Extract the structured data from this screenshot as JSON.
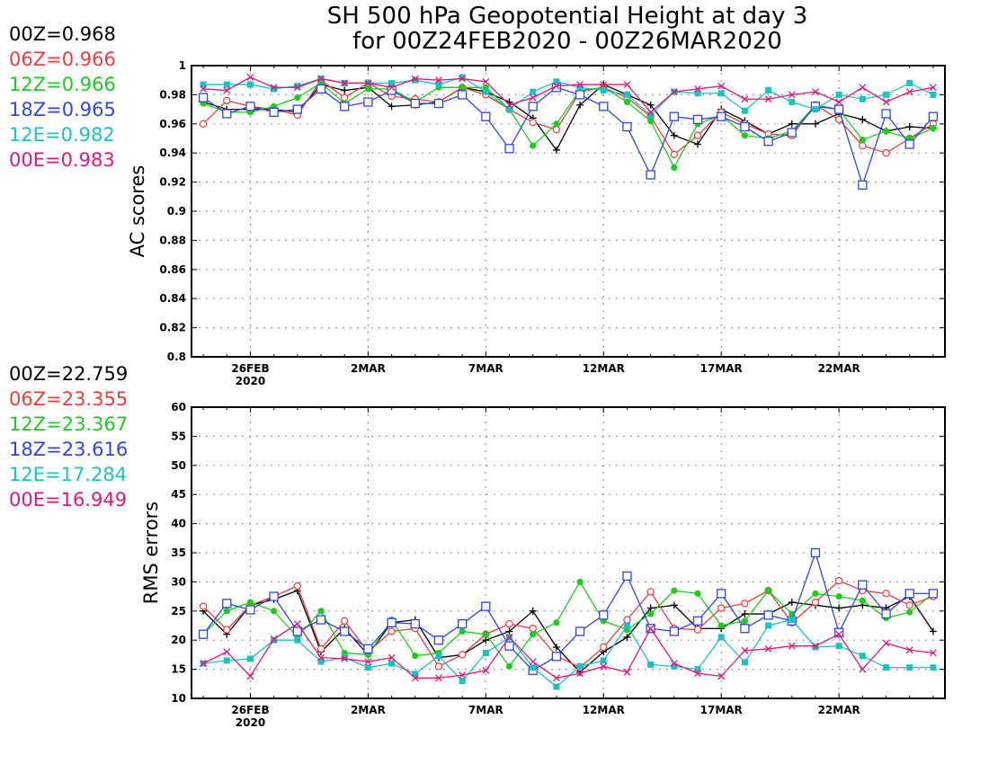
{
  "title": {
    "line1": "SH 500 hPa Geopotential Height at day 3",
    "line2": "for 00Z24FEB2020 - 00Z26MAR2020"
  },
  "colors": {
    "00Z": "#000000",
    "06Z": "#ef3b3b",
    "12Z": "#1bce1b",
    "18Z": "#2f45e6",
    "12E": "#19c3c3",
    "00E": "#e0167c"
  },
  "legend_ac": [
    {
      "key": "00Z",
      "text": "00Z=0.968"
    },
    {
      "key": "06Z",
      "text": "06Z=0.966"
    },
    {
      "key": "12Z",
      "text": "12Z=0.966"
    },
    {
      "key": "18Z",
      "text": "18Z=0.965"
    },
    {
      "key": "12E",
      "text": "12E=0.982"
    },
    {
      "key": "00E",
      "text": "00E=0.983"
    }
  ],
  "legend_rms": [
    {
      "key": "00Z",
      "text": "00Z=22.759"
    },
    {
      "key": "06Z",
      "text": "06Z=23.355"
    },
    {
      "key": "12Z",
      "text": "12Z=23.367"
    },
    {
      "key": "18Z",
      "text": "18Z=23.616"
    },
    {
      "key": "12E",
      "text": "12E=17.284"
    },
    {
      "key": "00E",
      "text": "00E=16.949"
    }
  ],
  "chart_data": [
    {
      "type": "line",
      "ylabel": "AC scores",
      "ylim": [
        0.8,
        1.0
      ],
      "yticks": [
        "0.8",
        "0.82",
        "0.84",
        "0.86",
        "0.88",
        "0.9",
        "0.92",
        "0.94",
        "0.96",
        "0.98",
        "1"
      ],
      "xticks": [
        {
          "day": 26,
          "label": "26FEB",
          "sub": "2020"
        },
        {
          "day": 31,
          "label": "2MAR",
          "sub": ""
        },
        {
          "day": 36,
          "label": "7MAR",
          "sub": ""
        },
        {
          "day": 41,
          "label": "12MAR",
          "sub": ""
        },
        {
          "day": 46,
          "label": "17MAR",
          "sub": ""
        },
        {
          "day": 51,
          "label": "22MAR",
          "sub": ""
        }
      ],
      "x": [
        24,
        25,
        26,
        27,
        28,
        29,
        30,
        31,
        32,
        33,
        34,
        35,
        36,
        37,
        38,
        39,
        40,
        41,
        42,
        43,
        44,
        45,
        46,
        47,
        48,
        49,
        50,
        51,
        52,
        53,
        54,
        55
      ],
      "grid": true,
      "series": [
        {
          "name": "00Z",
          "marker": "plus",
          "values": [
            0.975,
            0.97,
            0.97,
            0.97,
            0.968,
            0.987,
            0.983,
            0.985,
            0.972,
            0.973,
            0.975,
            0.985,
            0.982,
            0.975,
            0.964,
            0.942,
            0.973,
            0.987,
            0.98,
            0.973,
            0.952,
            0.946,
            0.97,
            0.962,
            0.953,
            0.96,
            0.96,
            0.967,
            0.963,
            0.955,
            0.958,
            0.957
          ]
        },
        {
          "name": "06Z",
          "marker": "circle",
          "values": [
            0.96,
            0.976,
            0.972,
            0.97,
            0.966,
            0.99,
            0.978,
            0.988,
            0.979,
            0.977,
            0.975,
            0.985,
            0.98,
            0.97,
            0.961,
            0.956,
            0.982,
            0.985,
            0.978,
            0.965,
            0.939,
            0.952,
            0.968,
            0.96,
            0.953,
            0.952,
            0.973,
            0.963,
            0.945,
            0.94,
            0.95,
            0.96
          ]
        },
        {
          "name": "12Z",
          "marker": "dot",
          "values": [
            0.974,
            0.968,
            0.968,
            0.972,
            0.978,
            0.988,
            0.974,
            0.984,
            0.984,
            0.975,
            0.985,
            0.985,
            0.985,
            0.97,
            0.945,
            0.96,
            0.983,
            0.985,
            0.975,
            0.962,
            0.93,
            0.96,
            0.966,
            0.952,
            0.95,
            0.955,
            0.973,
            0.97,
            0.949,
            0.955,
            0.95,
            0.957
          ]
        },
        {
          "name": "18Z",
          "marker": "square",
          "values": [
            0.978,
            0.967,
            0.972,
            0.968,
            0.97,
            0.984,
            0.972,
            0.975,
            0.983,
            0.974,
            0.974,
            0.98,
            0.965,
            0.943,
            0.972,
            0.985,
            0.98,
            0.972,
            0.958,
            0.925,
            0.965,
            0.963,
            0.965,
            0.958,
            0.948,
            0.954,
            0.972,
            0.97,
            0.918,
            0.967,
            0.946,
            0.965
          ]
        },
        {
          "name": "12E",
          "marker": "filledsquare",
          "values": [
            0.987,
            0.987,
            0.987,
            0.984,
            0.986,
            0.991,
            0.988,
            0.988,
            0.988,
            0.99,
            0.987,
            0.992,
            0.982,
            0.97,
            0.982,
            0.989,
            0.985,
            0.983,
            0.98,
            0.966,
            0.982,
            0.981,
            0.981,
            0.969,
            0.983,
            0.975,
            0.97,
            0.98,
            0.977,
            0.98,
            0.988,
            0.98
          ]
        },
        {
          "name": "00E",
          "marker": "x",
          "values": [
            0.984,
            0.983,
            0.992,
            0.985,
            0.985,
            0.991,
            0.988,
            0.988,
            0.985,
            0.991,
            0.99,
            0.991,
            0.989,
            0.973,
            0.978,
            0.986,
            0.987,
            0.987,
            0.987,
            0.968,
            0.982,
            0.984,
            0.986,
            0.977,
            0.977,
            0.98,
            0.982,
            0.975,
            0.985,
            0.975,
            0.982,
            0.985
          ]
        }
      ]
    },
    {
      "type": "line",
      "ylabel": "RMS errors",
      "ylim": [
        10,
        60
      ],
      "yticks": [
        "10",
        "15",
        "20",
        "25",
        "30",
        "35",
        "40",
        "45",
        "50",
        "55",
        "60"
      ],
      "xticks": [
        {
          "day": 26,
          "label": "26FEB",
          "sub": "2020"
        },
        {
          "day": 31,
          "label": "2MAR",
          "sub": ""
        },
        {
          "day": 36,
          "label": "7MAR",
          "sub": ""
        },
        {
          "day": 41,
          "label": "12MAR",
          "sub": ""
        },
        {
          "day": 46,
          "label": "17MAR",
          "sub": ""
        },
        {
          "day": 51,
          "label": "22MAR",
          "sub": ""
        }
      ],
      "x": [
        24,
        25,
        26,
        27,
        28,
        29,
        30,
        31,
        32,
        33,
        34,
        35,
        36,
        37,
        38,
        39,
        40,
        41,
        42,
        43,
        44,
        45,
        46,
        47,
        48,
        49,
        50,
        51,
        52,
        53,
        54,
        55
      ],
      "grid": true,
      "series": [
        {
          "name": "00Z",
          "marker": "plus",
          "values": [
            25,
            21,
            26,
            27,
            28.5,
            18,
            22,
            17.5,
            23,
            23.5,
            17,
            17.5,
            20,
            21.5,
            25,
            18.8,
            14.5,
            18,
            20.5,
            25.5,
            26,
            22,
            22,
            24.5,
            24.5,
            26.5,
            26,
            25.5,
            26,
            25.5,
            27.5,
            21.5
          ]
        },
        {
          "name": "06Z",
          "marker": "circle",
          "values": [
            25.8,
            21.8,
            26,
            27.5,
            29.3,
            18.5,
            23.3,
            18,
            21.5,
            22,
            15.5,
            17.5,
            21,
            22.8,
            22,
            17.3,
            15.3,
            18.8,
            23.5,
            28.3,
            22,
            21.8,
            25.5,
            26.3,
            28.5,
            23,
            26.5,
            30.2,
            28.5,
            28,
            26,
            27.5
          ]
        },
        {
          "name": "12Z",
          "marker": "dot",
          "values": [
            21,
            25,
            26.5,
            25,
            20.5,
            25,
            17.8,
            17.5,
            23.5,
            17.3,
            17.8,
            21.5,
            21,
            15.5,
            21,
            23,
            30,
            23.3,
            21.8,
            24.5,
            28.5,
            28,
            22.5,
            23.3,
            28.5,
            24.5,
            28,
            27.5,
            26.8,
            23.8,
            24.8,
            28
          ]
        },
        {
          "name": "18Z",
          "marker": "square",
          "values": [
            21,
            26.3,
            25.2,
            27.5,
            21.5,
            23.5,
            21.5,
            18.5,
            23,
            22.8,
            20,
            22.8,
            25.8,
            19,
            14.8,
            17.2,
            21.5,
            24.3,
            31,
            22,
            21.5,
            23.3,
            28,
            22,
            24.3,
            23.3,
            35,
            21.3,
            29.5,
            24.5,
            28,
            28
          ]
        },
        {
          "name": "12E",
          "marker": "filledsquare",
          "values": [
            16,
            16.5,
            16.8,
            20,
            20,
            16.3,
            17,
            15.3,
            16,
            14.2,
            17.3,
            13,
            17.8,
            20.5,
            15.3,
            12,
            15.5,
            16.5,
            22.5,
            15.8,
            15.5,
            15,
            20.5,
            16.2,
            22.5,
            23.5,
            18.8,
            19,
            17.3,
            15.3,
            15.3,
            15.3
          ]
        },
        {
          "name": "00E",
          "marker": "x",
          "values": [
            16,
            18,
            13.8,
            20.2,
            22.8,
            17,
            16.8,
            16.3,
            17,
            13.5,
            13.5,
            14,
            14.8,
            20.5,
            16.3,
            13.5,
            14.3,
            15.5,
            14.5,
            22,
            16,
            14.3,
            13.8,
            18.2,
            18.5,
            19,
            19,
            21,
            15,
            19.5,
            18.3,
            17.8
          ]
        }
      ]
    }
  ]
}
